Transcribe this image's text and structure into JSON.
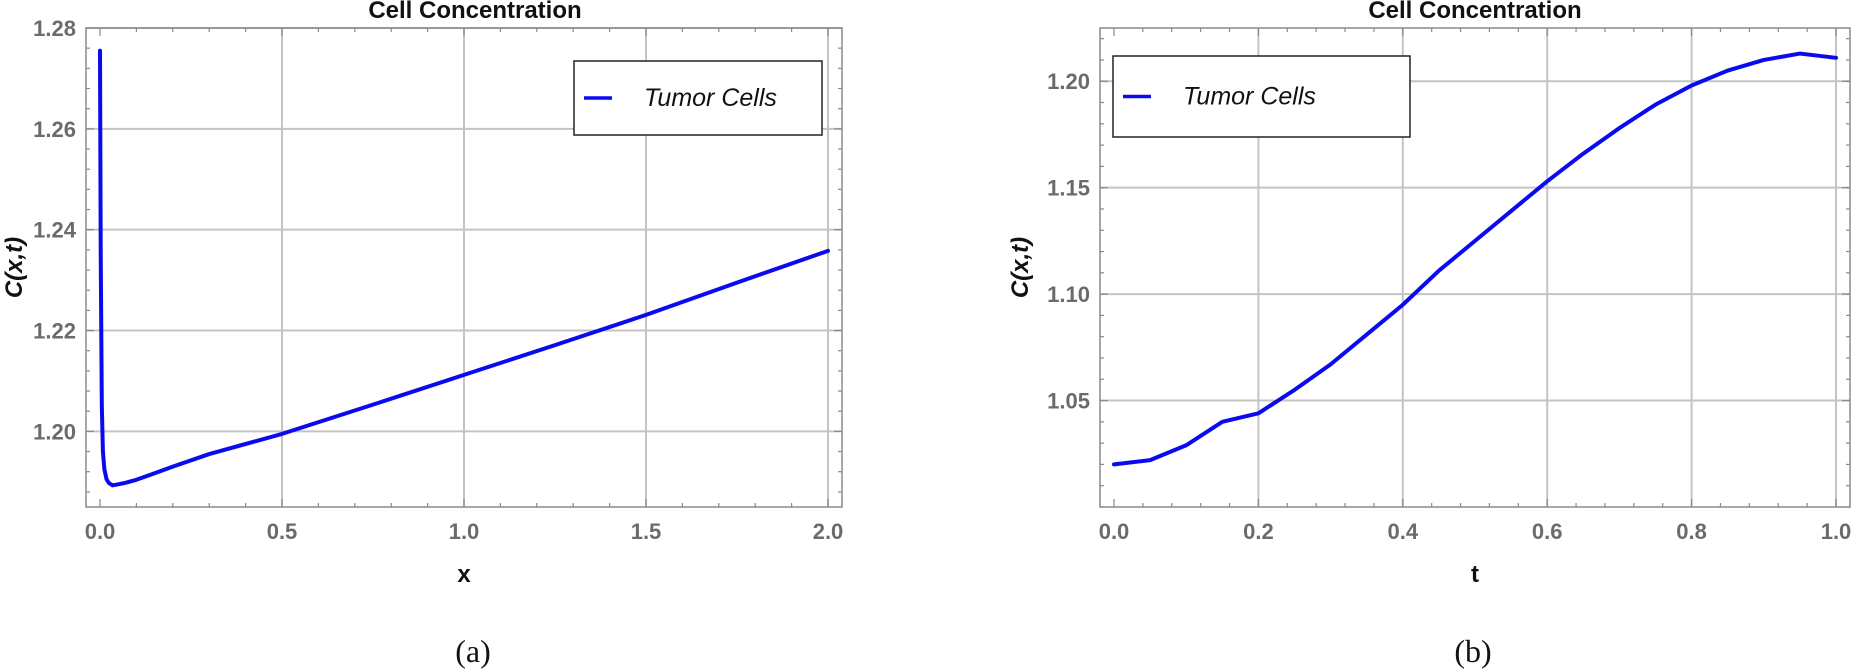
{
  "chart_data": [
    {
      "type": "line",
      "title": "Cell Concentration",
      "xlabel": "x",
      "ylabel": "C(x,t)",
      "xlim": [
        0,
        2.0
      ],
      "ylim": [
        1.185,
        1.28
      ],
      "x_ticks": [
        0.0,
        0.5,
        1.0,
        1.5,
        2.0
      ],
      "x_tick_labels": [
        "0.0",
        "0.5",
        "1.0",
        "1.5",
        "2.0"
      ],
      "y_ticks": [
        1.2,
        1.22,
        1.24,
        1.26,
        1.28
      ],
      "y_tick_labels": [
        "1.20",
        "1.22",
        "1.24",
        "1.26",
        "1.28"
      ],
      "grid": true,
      "legend_position": "top-right",
      "caption": "(a)",
      "series": [
        {
          "name": "Tumor Cells",
          "color": "#0a0af0",
          "x": [
            0.0,
            0.002,
            0.005,
            0.008,
            0.012,
            0.018,
            0.025,
            0.035,
            0.05,
            0.07,
            0.1,
            0.15,
            0.2,
            0.3,
            0.5,
            0.75,
            1.0,
            1.25,
            1.5,
            1.75,
            2.0
          ],
          "y": [
            1.2755,
            1.235,
            1.205,
            1.196,
            1.1925,
            1.1905,
            1.1897,
            1.1893,
            1.1895,
            1.1898,
            1.1904,
            1.1917,
            1.193,
            1.1955,
            1.1995,
            1.2053,
            1.2112,
            1.2171,
            1.2231,
            1.2295,
            1.2358
          ]
        }
      ]
    },
    {
      "type": "line",
      "title": "Cell Concentration",
      "xlabel": "t",
      "ylabel": "C(x,t)",
      "xlim": [
        0,
        1.0
      ],
      "ylim": [
        1.0,
        1.225
      ],
      "x_ticks": [
        0.0,
        0.2,
        0.4,
        0.6,
        0.8,
        1.0
      ],
      "x_tick_labels": [
        "0.0",
        "0.2",
        "0.4",
        "0.6",
        "0.8",
        "1.0"
      ],
      "y_ticks": [
        1.05,
        1.1,
        1.15,
        1.2
      ],
      "y_tick_labels": [
        "1.05",
        "1.10",
        "1.15",
        "1.20"
      ],
      "grid": true,
      "legend_position": "top-left",
      "caption": "(b)",
      "series": [
        {
          "name": "Tumor Cells",
          "color": "#0a0af0",
          "x": [
            0.0,
            0.05,
            0.1,
            0.15,
            0.2,
            0.25,
            0.3,
            0.35,
            0.4,
            0.45,
            0.5,
            0.55,
            0.6,
            0.65,
            0.7,
            0.75,
            0.8,
            0.85,
            0.9,
            0.95,
            1.0
          ],
          "y": [
            1.02,
            1.022,
            1.029,
            1.04,
            1.044,
            1.055,
            1.067,
            1.081,
            1.095,
            1.111,
            1.125,
            1.139,
            1.153,
            1.166,
            1.178,
            1.189,
            1.198,
            1.205,
            1.21,
            1.213,
            1.211
          ]
        }
      ]
    }
  ]
}
